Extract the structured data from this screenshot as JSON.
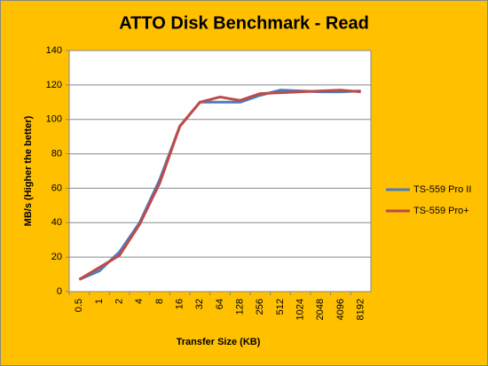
{
  "chart_data": {
    "type": "line",
    "title": "ATTO Disk Benchmark - Read",
    "x_label": "Transfer Size (KB)",
    "y_label": "MB/s (Higher the better)",
    "categories": [
      "0.5",
      "1",
      "2",
      "4",
      "8",
      "16",
      "32",
      "64",
      "128",
      "256",
      "512",
      "1024",
      "2048",
      "4096",
      "8192"
    ],
    "series": [
      {
        "name": "TS-559 Pro II",
        "color": "#4a7ebb",
        "values": [
          7,
          12,
          23,
          40,
          65,
          96,
          110,
          110,
          110,
          114,
          117,
          116.5,
          116,
          116,
          116.5
        ]
      },
      {
        "name": "TS-559 Pro+",
        "color": "#be4b48",
        "values": [
          7,
          14,
          21,
          39,
          63,
          96,
          110,
          113,
          111,
          115,
          115.5,
          116,
          116.5,
          117,
          116
        ]
      }
    ],
    "ylim": [
      0,
      140
    ],
    "yticks": [
      0,
      20,
      40,
      60,
      80,
      100,
      120,
      140
    ],
    "grid": true,
    "legend": "right"
  }
}
